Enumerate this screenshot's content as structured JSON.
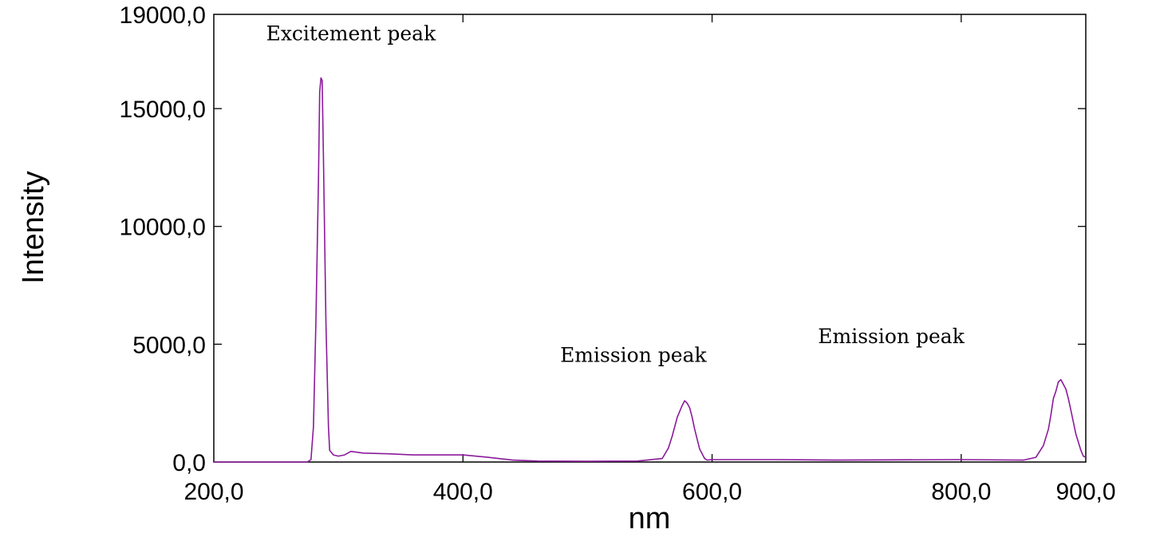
{
  "chart_data": {
    "type": "line",
    "xlabel": "nm",
    "ylabel": "Intensity",
    "xlim": [
      200,
      900
    ],
    "ylim": [
      0,
      19000
    ],
    "x_ticks": [
      {
        "value": 200,
        "label": "200,0"
      },
      {
        "value": 400,
        "label": "400,0"
      },
      {
        "value": 600,
        "label": "600,0"
      },
      {
        "value": 800,
        "label": "800,0"
      },
      {
        "value": 900,
        "label": "900,0"
      }
    ],
    "y_ticks": [
      {
        "value": 0,
        "label": "0,0"
      },
      {
        "value": 5000,
        "label": "5000,0"
      },
      {
        "value": 10000,
        "label": "10000,0"
      },
      {
        "value": 15000,
        "label": "15000,0"
      },
      {
        "value": 19000,
        "label": "19000,0"
      }
    ],
    "grid": false,
    "legend": "none",
    "series": [
      {
        "color": "#8b1a9b",
        "x": [
          200,
          270,
          275,
          278,
          280,
          282,
          284,
          285,
          286,
          287,
          288,
          290,
          292,
          293,
          296,
          300,
          305,
          310,
          320,
          340,
          360,
          380,
          400,
          420,
          440,
          460,
          500,
          540,
          560,
          565,
          568,
          572,
          576,
          578,
          580,
          582,
          584,
          586,
          590,
          594,
          596,
          600,
          650,
          700,
          800,
          850,
          860,
          866,
          870,
          872,
          874,
          876,
          878,
          880,
          882,
          884,
          886,
          888,
          892,
          896,
          898,
          900
        ],
        "y": [
          0,
          0,
          0,
          100,
          1500,
          6000,
          12000,
          15700,
          16300,
          16200,
          13000,
          6000,
          1500,
          500,
          300,
          250,
          300,
          450,
          380,
          350,
          300,
          300,
          300,
          200,
          80,
          40,
          30,
          40,
          150,
          600,
          1100,
          1900,
          2400,
          2600,
          2500,
          2300,
          1900,
          1400,
          550,
          150,
          80,
          100,
          100,
          80,
          100,
          80,
          200,
          700,
          1400,
          2000,
          2700,
          3000,
          3400,
          3500,
          3300,
          3100,
          2700,
          2200,
          1200,
          500,
          250,
          200
        ]
      }
    ],
    "annotations": [
      {
        "text": "Excitement peak",
        "x": 242,
        "y": 17900
      },
      {
        "text": "Emission peak",
        "x": 478,
        "y": 4250
      },
      {
        "text": "Emission peak",
        "x": 685,
        "y": 5050
      }
    ]
  }
}
